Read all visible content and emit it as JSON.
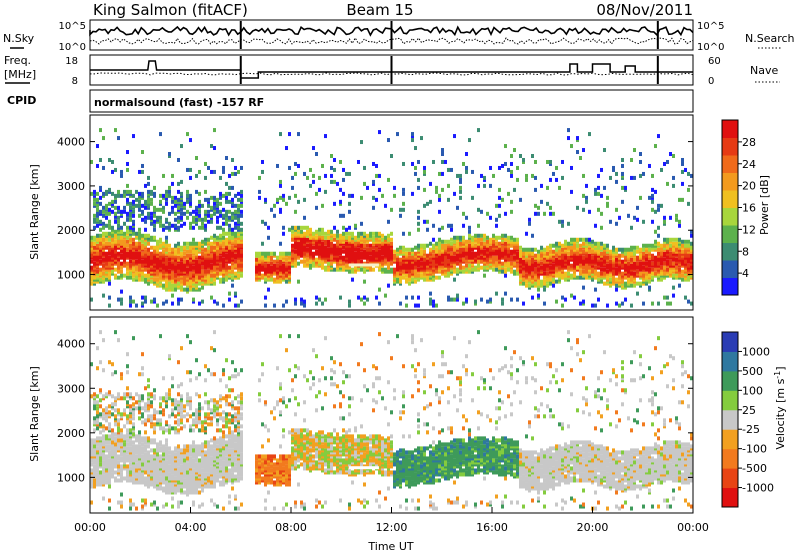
{
  "header": {
    "station": "King Salmon (fitACF)",
    "beam": "Beam 15",
    "date": "08/Nov/2011"
  },
  "noise_panel": {
    "left_label": "N.Sky",
    "right_label": "N.Search",
    "left_ticks": [
      "10^5",
      "10^0"
    ],
    "right_ticks": [
      "10^5",
      "10^0"
    ]
  },
  "freq_panel": {
    "left_label_1": "Freq.",
    "left_label_2": "[MHz]",
    "right_label": "Nave",
    "left_ticks": [
      "18",
      "8"
    ],
    "right_ticks": [
      "60",
      "0"
    ]
  },
  "cpid": {
    "label": "CPID",
    "value": "normalsound (fast) -157 RF"
  },
  "chart_data": [
    {
      "type": "heatmap",
      "panel": "power",
      "ylabel": "Slant Range [km]",
      "xlabel": "",
      "x_ticks": [
        "00:00",
        "04:00",
        "08:00",
        "12:00",
        "16:00",
        "20:00",
        "00:00"
      ],
      "y_ticks": [
        1000,
        2000,
        3000,
        4000
      ],
      "ylim": [
        200,
        4600
      ],
      "xlim_hours": [
        0,
        24
      ],
      "colorbar": {
        "label": "Power [dB]",
        "ticks": [
          "4",
          "8",
          "12",
          "16",
          "20",
          "24",
          "28"
        ],
        "colors": [
          "#1a1aff",
          "#2a5ab0",
          "#3c8c72",
          "#5cb14c",
          "#a8d63c",
          "#f0c020",
          "#f39a1e",
          "#f06a1a",
          "#e63a14",
          "#e01010"
        ]
      },
      "main_band": {
        "description_hours": [
          [
            0.0,
            6.0
          ],
          [
            6.8,
            24.0
          ]
        ],
        "range_km": [
          700,
          2100
        ]
      }
    },
    {
      "type": "heatmap",
      "panel": "velocity",
      "ylabel": "Slant Range [km]",
      "xlabel": "Time UT",
      "x_ticks": [
        "00:00",
        "04:00",
        "08:00",
        "12:00",
        "16:00",
        "20:00",
        "00:00"
      ],
      "y_ticks": [
        1000,
        2000,
        3000,
        4000
      ],
      "ylim": [
        200,
        4600
      ],
      "xlim_hours": [
        0,
        24
      ],
      "colorbar": {
        "label": "Velocity [m s^-1]",
        "ticks": [
          "1000",
          "500",
          "100",
          "25",
          "-25",
          "-100",
          "-500",
          "-1000"
        ],
        "colors": [
          "#2a3cb4",
          "#2f78a0",
          "#3e9a5a",
          "#84cc3e",
          "#c8c8c8",
          "#f2a020",
          "#f27a1e",
          "#e84414",
          "#e01010"
        ]
      }
    }
  ]
}
